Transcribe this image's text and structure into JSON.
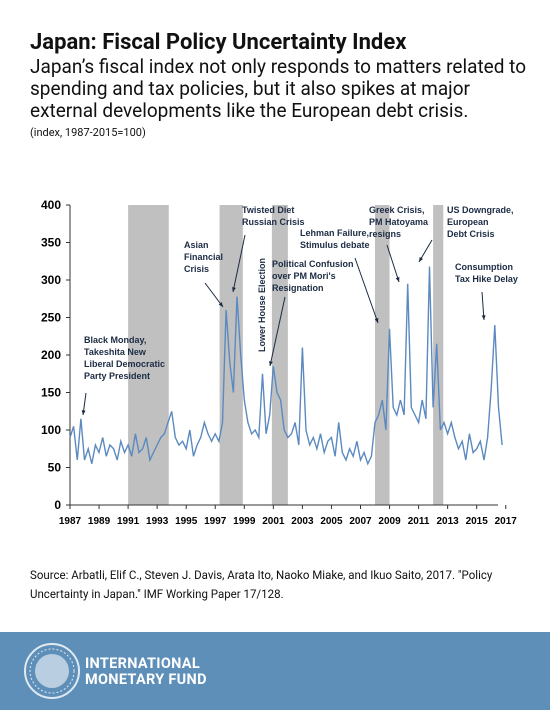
{
  "header": {
    "title": "Japan: Fiscal Policy Uncertainty Index",
    "subtitle": "Japan’s fiscal index not only responds to matters related to spending and tax policies, but it also spikes at major external developments like the European debt crisis.",
    "note": "(index, 1987-2015=100)"
  },
  "chart_data": {
    "type": "line",
    "color": "#5b8ac0",
    "shade_color": "#c0c0c0",
    "x": [
      1987,
      1987.25,
      1987.5,
      1987.75,
      1988,
      1988.25,
      1988.5,
      1988.75,
      1989,
      1989.25,
      1989.5,
      1989.75,
      1990,
      1990.25,
      1990.5,
      1990.75,
      1991,
      1991.25,
      1991.5,
      1991.75,
      1992,
      1992.25,
      1992.5,
      1992.75,
      1993,
      1993.25,
      1993.5,
      1993.75,
      1994,
      1994.25,
      1994.5,
      1994.75,
      1995,
      1995.25,
      1995.5,
      1995.75,
      1996,
      1996.25,
      1996.5,
      1996.75,
      1997,
      1997.25,
      1997.5,
      1997.75,
      1998,
      1998.25,
      1998.5,
      1998.75,
      1999,
      1999.25,
      1999.5,
      1999.75,
      2000,
      2000.25,
      2000.5,
      2000.75,
      2001,
      2001.25,
      2001.5,
      2001.75,
      2002,
      2002.25,
      2002.5,
      2002.75,
      2003,
      2003.25,
      2003.5,
      2003.75,
      2004,
      2004.25,
      2004.5,
      2004.75,
      2005,
      2005.25,
      2005.5,
      2005.75,
      2006,
      2006.25,
      2006.5,
      2006.75,
      2007,
      2007.25,
      2007.5,
      2007.75,
      2008,
      2008.25,
      2008.5,
      2008.75,
      2009,
      2009.25,
      2009.5,
      2009.75,
      2010,
      2010.25,
      2010.5,
      2010.75,
      2011,
      2011.25,
      2011.5,
      2011.75,
      2012,
      2012.25,
      2012.5,
      2012.75,
      2013,
      2013.25,
      2013.5,
      2013.75,
      2014,
      2014.25,
      2014.5,
      2014.75,
      2015,
      2015.25,
      2015.5,
      2015.75,
      2016,
      2016.25,
      2016.5,
      2016.75
    ],
    "values": [
      90,
      105,
      60,
      115,
      60,
      75,
      55,
      80,
      70,
      90,
      65,
      80,
      75,
      60,
      85,
      70,
      80,
      65,
      95,
      70,
      75,
      90,
      60,
      70,
      80,
      90,
      95,
      110,
      125,
      90,
      80,
      85,
      75,
      100,
      65,
      80,
      90,
      110,
      95,
      85,
      95,
      85,
      110,
      260,
      190,
      150,
      278,
      200,
      140,
      110,
      95,
      100,
      90,
      175,
      95,
      120,
      185,
      150,
      140,
      100,
      90,
      95,
      110,
      80,
      210,
      100,
      80,
      90,
      75,
      95,
      70,
      85,
      90,
      65,
      110,
      70,
      60,
      75,
      65,
      85,
      60,
      70,
      55,
      65,
      110,
      120,
      140,
      100,
      235,
      130,
      120,
      140,
      120,
      295,
      130,
      120,
      110,
      140,
      115,
      318,
      130,
      215,
      100,
      110,
      95,
      110,
      90,
      75,
      85,
      60,
      95,
      70,
      75,
      85,
      60,
      90,
      155,
      240,
      130,
      80
    ],
    "shaded_ranges": [
      [
        1991,
        1993.8
      ],
      [
        1997.3,
        1998.9
      ],
      [
        2000.9,
        2002
      ],
      [
        2008,
        2009
      ],
      [
        2012,
        2012.7
      ]
    ],
    "xlim": [
      1987,
      2017.5
    ],
    "xticks": [
      1987,
      1989,
      1991,
      1993,
      1995,
      1997,
      1999,
      2001,
      2003,
      2005,
      2007,
      2009,
      2011,
      2013,
      2015,
      2017
    ],
    "ylim": [
      0,
      400
    ],
    "yticks": [
      0,
      50,
      100,
      150,
      200,
      250,
      300,
      350,
      400
    ],
    "annotations": [
      [
        "Black Monday,",
        "Takeshita New",
        "Liberal Democratic",
        "Party President"
      ],
      [
        "Asian",
        "Financial",
        "Crisis"
      ],
      [
        "Twisted Diet",
        "Russian Crisis"
      ],
      [
        "Lower House Election"
      ],
      [
        "Political Confusion",
        "over PM Mori's",
        "Resignation"
      ],
      [
        "Lehman Failure,",
        "Stimulus debate"
      ],
      [
        "Greek Crisis,",
        "PM Hatoyama",
        "resigns"
      ],
      [
        "US Downgrade,",
        "European",
        "Debt Crisis"
      ],
      [
        "Consumption",
        "Tax Hike Delay"
      ]
    ]
  },
  "source": "Source: Arbatli, Elif C., Steven J. Davis, Arata Ito, Naoko Miake, and Ikuo Saito, 2017. \"Policy Uncertainty in Japan.\" IMF Working Paper 17/128.",
  "footer": {
    "org_lines": [
      "INTERNATIONAL",
      "MONETARY FUND"
    ]
  }
}
